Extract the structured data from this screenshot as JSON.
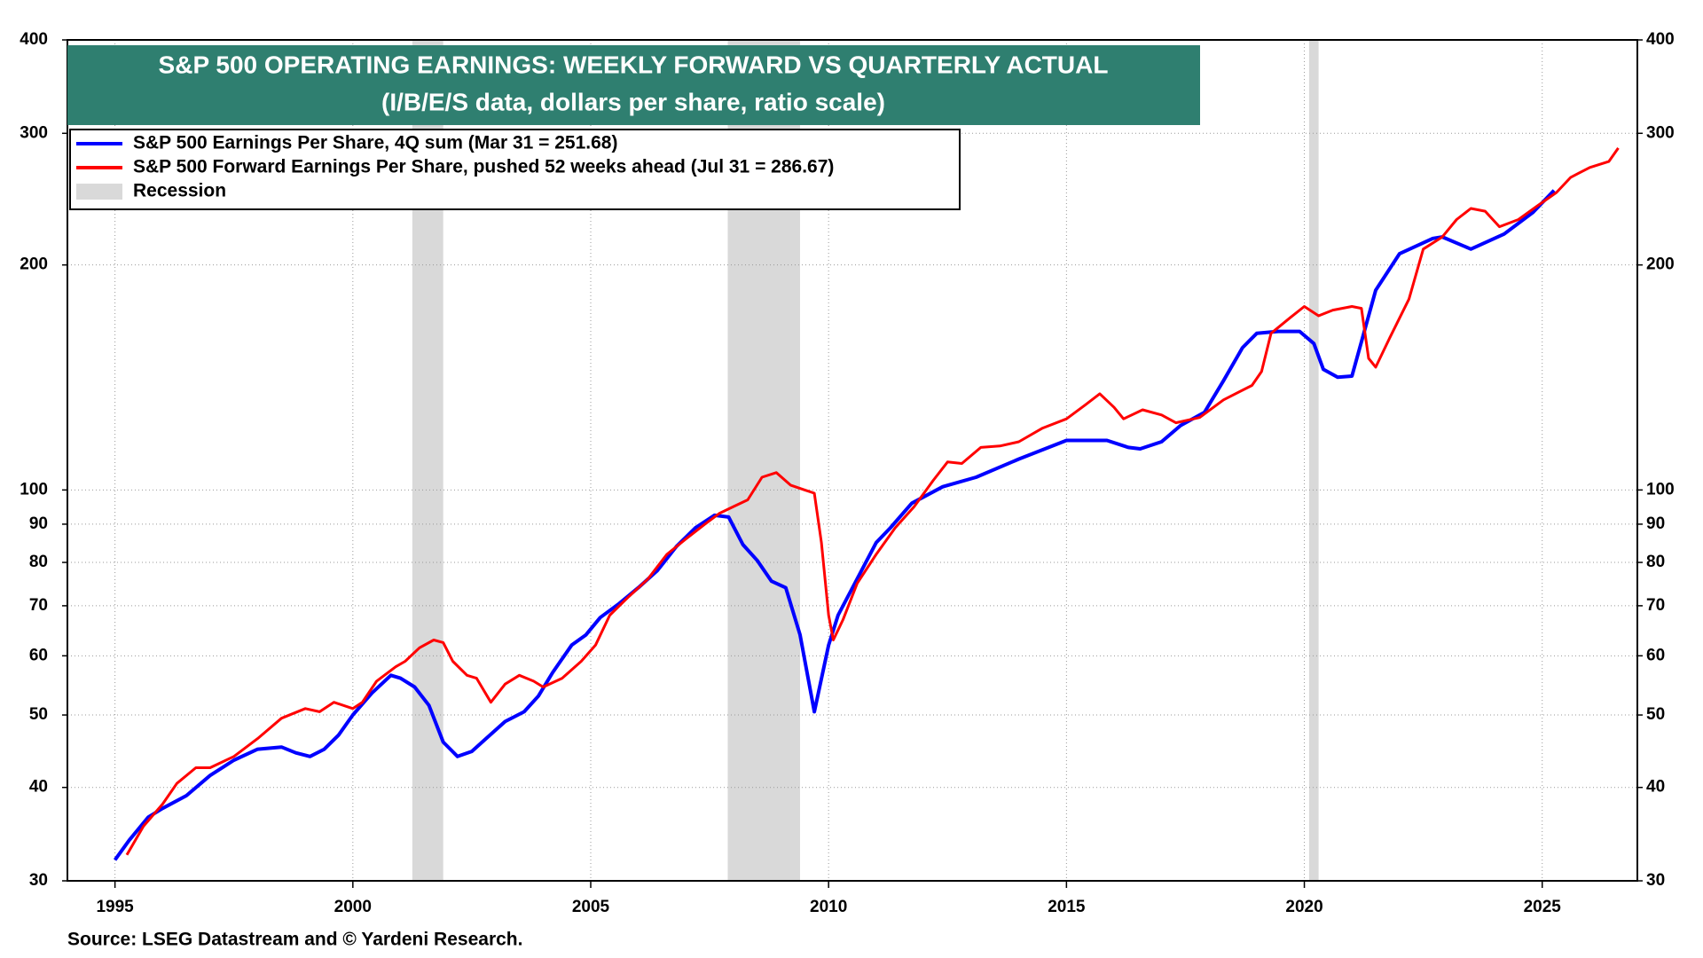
{
  "chart_data": {
    "type": "line",
    "title": "S&P 500 OPERATING EARNINGS: WEEKLY FORWARD VS QUARTERLY ACTUAL",
    "subtitle": "(I/B/E/S data, dollars per share, ratio scale)",
    "source": "Source: LSEG Datastream and © Yardeni Research.",
    "log_scale": true,
    "grid": true,
    "legend_position": "top-left",
    "xlim": [
      1994,
      2027
    ],
    "xticks": [
      1995,
      2000,
      2005,
      2010,
      2015,
      2020,
      2025
    ],
    "ylim": [
      30,
      400
    ],
    "yticks": [
      30,
      40,
      50,
      60,
      70,
      80,
      90,
      100,
      200,
      300,
      400
    ],
    "y2lim": [
      30,
      400
    ],
    "y2ticks": [
      30,
      40,
      50,
      60,
      70,
      80,
      90,
      100,
      200,
      300,
      400
    ],
    "recession_label": "Recession",
    "recession_color": "#d9d9d9",
    "recessions": [
      [
        2001.25,
        2001.9
      ],
      [
        2007.88,
        2009.4
      ],
      [
        2020.1,
        2020.3
      ]
    ],
    "series": [
      {
        "name": "S&P 500 Earnings Per Share, 4Q sum (Mar 31 = 251.68)",
        "color": "#0000ff",
        "x": [
          1995.0,
          1995.3,
          1995.7,
          1996.0,
          1996.5,
          1997.0,
          1997.5,
          1998.0,
          1998.5,
          1998.8,
          1999.1,
          1999.4,
          1999.7,
          2000.0,
          2000.4,
          2000.8,
          2001.0,
          2001.3,
          2001.6,
          2001.9,
          2002.2,
          2002.5,
          2002.8,
          2003.2,
          2003.6,
          2003.9,
          2004.2,
          2004.6,
          2004.9,
          2005.2,
          2005.6,
          2006.0,
          2006.4,
          2006.8,
          2007.2,
          2007.6,
          2007.9,
          2008.2,
          2008.5,
          2008.8,
          2009.1,
          2009.4,
          2009.7,
          2010.0,
          2010.2,
          2011.0,
          2011.3,
          2011.75,
          2012.4,
          2013.1,
          2014.0,
          2015.0,
          2015.85,
          2016.3,
          2016.55,
          2017.0,
          2017.4,
          2017.9,
          2018.3,
          2018.7,
          2019.0,
          2019.45,
          2019.9,
          2020.2,
          2020.4,
          2020.7,
          2021.0,
          2021.5,
          2022.0,
          2022.7,
          2022.9,
          2023.5,
          2024.2,
          2024.8,
          2025.25
        ],
        "values": [
          32,
          34,
          36.5,
          37.5,
          39,
          41.5,
          43.5,
          45,
          45.3,
          44.5,
          44,
          45,
          47,
          50,
          53.5,
          56.5,
          56,
          54.5,
          51.5,
          46,
          44,
          44.7,
          46.5,
          49,
          50.5,
          53,
          57,
          62,
          64,
          67.5,
          70.5,
          74,
          78,
          84,
          89,
          92.5,
          92,
          84.5,
          80.5,
          75.5,
          74,
          64,
          50.5,
          62,
          68,
          85,
          89,
          96,
          101,
          104,
          110,
          116.5,
          116.5,
          114,
          113.5,
          116,
          122,
          127,
          140,
          155,
          162,
          163,
          163,
          157,
          145,
          141.5,
          142,
          185,
          207,
          217,
          218,
          210,
          220,
          235,
          251.68
        ]
      },
      {
        "name": "S&P 500 Forward Earnings Per Share, pushed 52 weeks ahead (Jul 31 = 286.67)",
        "color": "#ff0000",
        "x": [
          1995.25,
          1995.6,
          1996.0,
          1996.3,
          1996.7,
          1997.0,
          1997.5,
          1998.0,
          1998.5,
          1999.0,
          1999.3,
          1999.6,
          2000.0,
          2000.2,
          2000.5,
          2000.9,
          2001.1,
          2001.4,
          2001.7,
          2001.9,
          2002.1,
          2002.4,
          2002.6,
          2002.9,
          2003.2,
          2003.5,
          2003.8,
          2004.0,
          2004.4,
          2004.8,
          2005.1,
          2005.4,
          2005.8,
          2006.2,
          2006.6,
          2007.0,
          2007.4,
          2007.7,
          2008.0,
          2008.3,
          2008.6,
          2008.9,
          2009.2,
          2009.5,
          2009.7,
          2009.85,
          2010.0,
          2010.1,
          2010.3,
          2010.6,
          2011.0,
          2011.4,
          2011.8,
          2012.2,
          2012.5,
          2012.8,
          2013.2,
          2013.6,
          2014.0,
          2014.5,
          2015.0,
          2015.4,
          2015.7,
          2016.0,
          2016.2,
          2016.6,
          2017.0,
          2017.3,
          2017.8,
          2018.3,
          2018.9,
          2019.1,
          2019.3,
          2019.7,
          2020.0,
          2020.3,
          2020.6,
          2021.0,
          2021.2,
          2021.35,
          2021.5,
          2021.8,
          2022.2,
          2022.5,
          2022.9,
          2023.2,
          2023.5,
          2023.8,
          2024.1,
          2024.5,
          2024.9,
          2025.3,
          2025.6,
          2026.0,
          2026.4,
          2026.6
        ],
        "values": [
          32.5,
          35.5,
          38,
          40.5,
          42.5,
          42.5,
          44,
          46.5,
          49.5,
          51,
          50.5,
          52,
          51,
          52,
          55.5,
          58,
          59,
          61.5,
          63,
          62.5,
          59,
          56.5,
          56,
          52,
          55,
          56.5,
          55.5,
          54.5,
          56,
          59,
          62,
          68,
          72,
          76,
          82,
          86,
          90,
          93,
          95,
          97,
          104,
          105.5,
          101.5,
          100,
          99,
          85,
          68,
          63,
          67,
          75,
          82,
          89,
          95,
          103,
          109,
          108.5,
          114,
          114.5,
          116,
          121,
          124.5,
          130,
          134.5,
          129,
          124.5,
          128,
          126,
          123,
          125,
          132,
          138,
          144,
          162,
          170,
          176,
          171,
          174,
          176,
          175,
          150,
          146,
          160,
          180,
          210,
          218,
          230,
          238,
          236,
          225,
          230,
          240,
          250,
          262,
          270,
          275,
          286.67
        ]
      }
    ]
  }
}
